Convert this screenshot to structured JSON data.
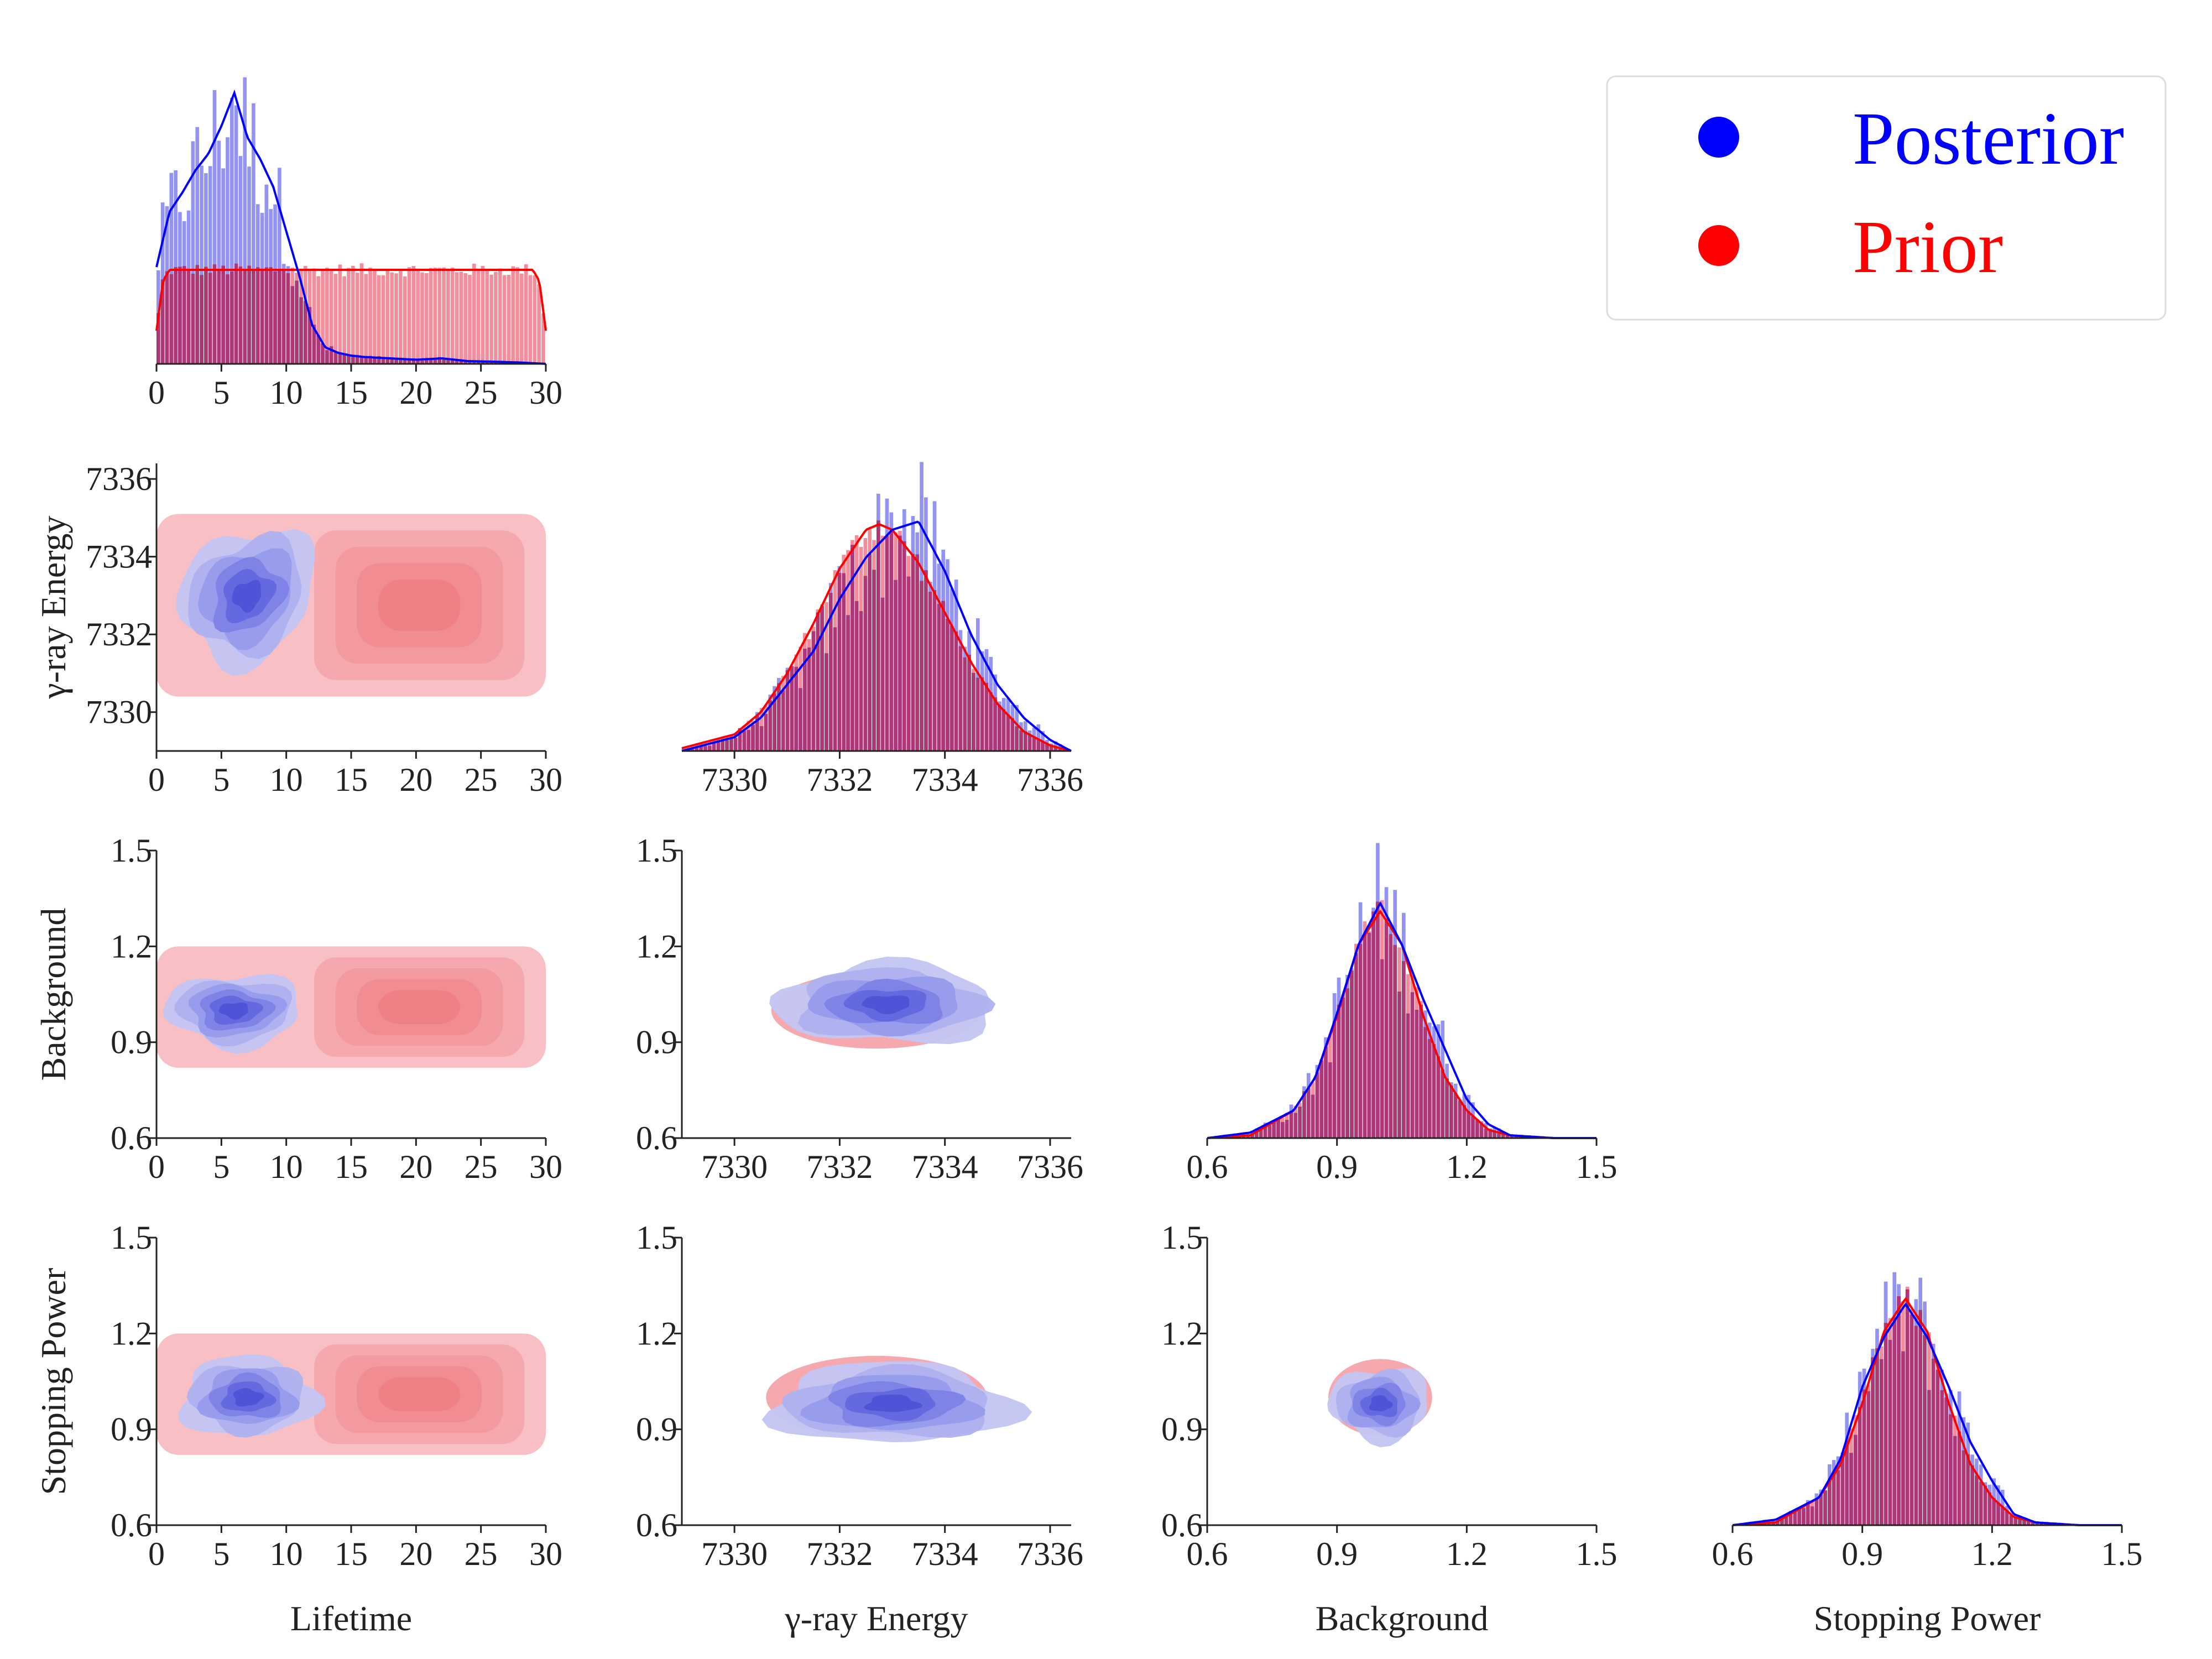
{
  "colors": {
    "posterior": "#0000ff",
    "prior": "#ff0000",
    "posterior_fill": "#6f6ff0",
    "prior_fill": "#f07a8a",
    "overlap_fill": "#b4306a"
  },
  "legend": {
    "placement": "top-right",
    "entries": [
      {
        "label": "Posterior",
        "color": "#0000ff",
        "marker": "circle"
      },
      {
        "label": "Prior",
        "color": "#ff0000",
        "marker": "circle"
      }
    ]
  },
  "parameters": [
    {
      "key": "lifetime",
      "label": "Lifetime",
      "range": [
        0,
        30
      ],
      "ticks": [
        "0",
        "5",
        "10",
        "15",
        "20",
        "25",
        "30"
      ]
    },
    {
      "key": "energy",
      "label": "γ-ray Energy",
      "range": [
        7329,
        7336.4
      ],
      "ticks": [
        "7330",
        "7332",
        "7334",
        "7336"
      ]
    },
    {
      "key": "background",
      "label": "Background",
      "range": [
        0.6,
        1.5
      ],
      "ticks": [
        "0.6",
        "0.9",
        "1.2",
        "1.5"
      ]
    },
    {
      "key": "stopping",
      "label": "Stopping Power",
      "range": [
        0.6,
        1.5
      ],
      "ticks": [
        "0.6",
        "0.9",
        "1.2",
        "1.5"
      ]
    }
  ],
  "chart_data": [
    {
      "type": "histogram",
      "panel": "lifetime",
      "xlabel": "",
      "xlim": [
        0,
        30
      ],
      "series": [
        {
          "name": "Posterior",
          "x": [
            0,
            1,
            2,
            3,
            4,
            5,
            6,
            7,
            8,
            9,
            10,
            11,
            12,
            13,
            14,
            15,
            16,
            18,
            20,
            22,
            24,
            26,
            28,
            30
          ],
          "density": [
            0.35,
            0.55,
            0.62,
            0.7,
            0.76,
            0.86,
            0.98,
            0.82,
            0.74,
            0.64,
            0.48,
            0.32,
            0.14,
            0.06,
            0.04,
            0.03,
            0.025,
            0.02,
            0.015,
            0.02,
            0.01,
            0.008,
            0.005,
            0.0
          ]
        },
        {
          "name": "Prior",
          "x": [
            0,
            0.5,
            1,
            5,
            10,
            15,
            20,
            25,
            29,
            29.5,
            30
          ],
          "density": [
            0.12,
            0.3,
            0.34,
            0.34,
            0.34,
            0.34,
            0.34,
            0.34,
            0.34,
            0.3,
            0.12
          ]
        }
      ]
    },
    {
      "type": "histogram",
      "panel": "energy",
      "xlim": [
        7329,
        7336.4
      ],
      "series": [
        {
          "name": "Posterior",
          "x": [
            7329,
            7330,
            7330.5,
            7331,
            7331.5,
            7332,
            7332.5,
            7333,
            7333.5,
            7334,
            7334.5,
            7335,
            7335.5,
            7336,
            7336.4
          ],
          "density": [
            0.0,
            0.05,
            0.12,
            0.24,
            0.36,
            0.55,
            0.7,
            0.8,
            0.83,
            0.65,
            0.42,
            0.24,
            0.12,
            0.04,
            0.0
          ]
        },
        {
          "name": "Prior",
          "x": [
            7329,
            7330,
            7330.5,
            7331,
            7331.5,
            7332,
            7332.5,
            7332.75,
            7333,
            7333.5,
            7334,
            7334.5,
            7335,
            7335.5,
            7336,
            7336.4
          ],
          "density": [
            0.01,
            0.06,
            0.14,
            0.28,
            0.46,
            0.66,
            0.8,
            0.82,
            0.8,
            0.68,
            0.5,
            0.32,
            0.17,
            0.07,
            0.02,
            0.0
          ]
        }
      ]
    },
    {
      "type": "histogram",
      "panel": "background",
      "xlim": [
        0.6,
        1.5
      ],
      "series": [
        {
          "name": "Posterior",
          "x": [
            0.6,
            0.7,
            0.8,
            0.85,
            0.9,
            0.95,
            1.0,
            1.05,
            1.1,
            1.15,
            1.2,
            1.25,
            1.3,
            1.4,
            1.5
          ],
          "density": [
            0.0,
            0.02,
            0.1,
            0.22,
            0.45,
            0.7,
            0.85,
            0.7,
            0.5,
            0.32,
            0.14,
            0.05,
            0.01,
            0.0,
            0.0
          ]
        },
        {
          "name": "Prior",
          "x": [
            0.6,
            0.7,
            0.8,
            0.85,
            0.9,
            0.95,
            1.0,
            1.05,
            1.1,
            1.15,
            1.2,
            1.25,
            1.3,
            1.4,
            1.5
          ],
          "density": [
            0.0,
            0.01,
            0.1,
            0.22,
            0.44,
            0.7,
            0.82,
            0.7,
            0.44,
            0.22,
            0.1,
            0.03,
            0.01,
            0.0,
            0.0
          ]
        }
      ]
    },
    {
      "type": "histogram",
      "panel": "stopping",
      "xlim": [
        0.6,
        1.5
      ],
      "series": [
        {
          "name": "Posterior",
          "x": [
            0.6,
            0.7,
            0.8,
            0.85,
            0.9,
            0.95,
            1.0,
            1.05,
            1.1,
            1.15,
            1.2,
            1.25,
            1.3,
            1.4,
            1.5
          ],
          "density": [
            0.0,
            0.02,
            0.1,
            0.24,
            0.5,
            0.68,
            0.8,
            0.68,
            0.5,
            0.3,
            0.16,
            0.04,
            0.01,
            0.0,
            0.0
          ]
        },
        {
          "name": "Prior",
          "x": [
            0.6,
            0.7,
            0.8,
            0.85,
            0.9,
            0.95,
            1.0,
            1.05,
            1.1,
            1.15,
            1.2,
            1.25,
            1.3,
            1.4,
            1.5
          ],
          "density": [
            0.0,
            0.01,
            0.1,
            0.22,
            0.44,
            0.7,
            0.82,
            0.7,
            0.44,
            0.22,
            0.1,
            0.03,
            0.01,
            0.0,
            0.0
          ]
        }
      ]
    },
    {
      "type": "kde2d",
      "panel": "energy_vs_lifetime",
      "x": "lifetime",
      "y": "energy",
      "prior": {
        "shape": "box",
        "x": [
          0,
          30
        ],
        "y": [
          7330.4,
          7335.1
        ],
        "peak": [
          22,
          7332.8
        ]
      },
      "posterior": {
        "center": [
          7,
          7333.0
        ],
        "spread": [
          4.5,
          1.5
        ],
        "tilt": 0.35
      }
    },
    {
      "type": "kde2d",
      "panel": "background_vs_lifetime",
      "x": "lifetime",
      "y": "background",
      "prior": {
        "shape": "box",
        "x": [
          0,
          30
        ],
        "y": [
          0.82,
          1.2
        ],
        "peak": [
          25,
          1.0
        ]
      },
      "posterior": {
        "center": [
          6,
          1.0
        ],
        "spread": [
          4.5,
          0.1
        ],
        "tilt": 0.0
      }
    },
    {
      "type": "kde2d",
      "panel": "background_vs_energy",
      "x": "energy",
      "y": "background",
      "prior": {
        "shape": "ellipse",
        "center": [
          7332.7,
          1.0
        ],
        "spread": [
          2.0,
          0.12
        ]
      },
      "posterior": {
        "center": [
          7332.9,
          1.02
        ],
        "spread": [
          1.8,
          0.11
        ],
        "tilt": 0.0
      }
    },
    {
      "type": "kde2d",
      "panel": "stopping_vs_lifetime",
      "x": "lifetime",
      "y": "stopping",
      "prior": {
        "shape": "box",
        "x": [
          0,
          30
        ],
        "y": [
          0.82,
          1.2
        ],
        "peak": [
          22,
          0.99
        ]
      },
      "posterior": {
        "center": [
          7,
          1.0
        ],
        "spread": [
          4.5,
          0.11
        ],
        "tilt": 0.0
      }
    },
    {
      "type": "kde2d",
      "panel": "stopping_vs_energy",
      "x": "energy",
      "y": "stopping",
      "prior": {
        "shape": "ellipse",
        "center": [
          7332.7,
          1.0
        ],
        "spread": [
          2.1,
          0.13
        ]
      },
      "posterior": {
        "center": [
          7333.0,
          0.98
        ],
        "spread": [
          2.0,
          0.11
        ],
        "tilt": 0.0
      }
    },
    {
      "type": "kde2d",
      "panel": "stopping_vs_background",
      "x": "background",
      "y": "stopping",
      "prior": {
        "shape": "ellipse",
        "center": [
          1.0,
          1.0
        ],
        "spread": [
          0.12,
          0.12
        ]
      },
      "posterior": {
        "center": [
          1.0,
          0.98
        ],
        "spread": [
          0.1,
          0.1
        ],
        "tilt": 0.0
      }
    }
  ]
}
